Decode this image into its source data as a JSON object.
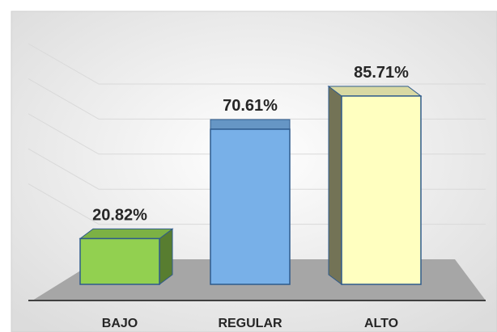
{
  "chart_data": {
    "type": "bar3d",
    "categories": [
      "BAJO",
      "REGULAR",
      "ALTO"
    ],
    "values": [
      20.82,
      70.61,
      85.71
    ],
    "value_labels": [
      "20.82%",
      "70.61%",
      "85.71%"
    ],
    "colors": [
      "#92d050",
      "#78b0e8",
      "#ffffc0"
    ],
    "ylim": [
      0,
      100
    ],
    "yticks": [
      0,
      20,
      40,
      60,
      80,
      100
    ],
    "grid": true
  }
}
